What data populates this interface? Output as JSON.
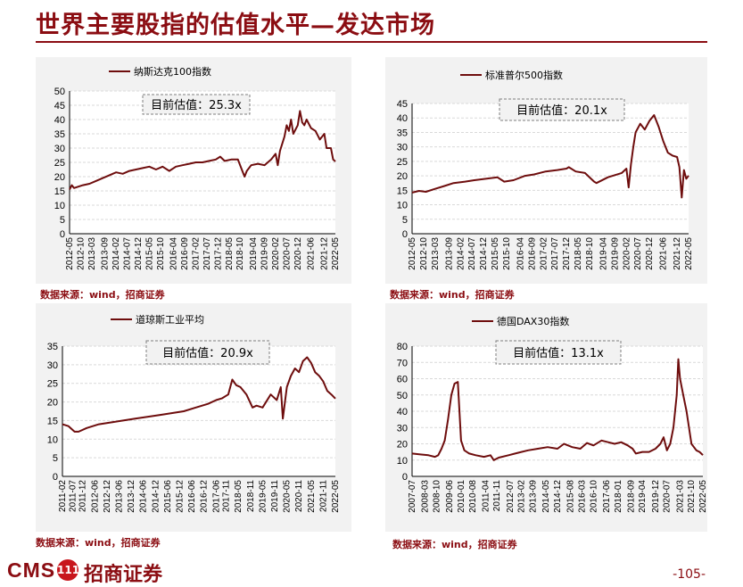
{
  "page": {
    "title": "世界主要股指的估值水平—发达市场",
    "page_number": "-105-",
    "logo": {
      "cms": "CMS",
      "badge": "111",
      "name": "招商证券"
    },
    "brand_color": "#8b0d12",
    "line_color": "#6e0d0d"
  },
  "chart_data": [
    {
      "type": "line",
      "legend": "纳斯达克100指数",
      "annotation": "目前估值：25.3x",
      "source": "数据来源：wind，招商证券",
      "ylim": [
        0,
        50
      ],
      "yticks": [
        0,
        5,
        10,
        15,
        20,
        25,
        30,
        35,
        40,
        45,
        50
      ],
      "xlim": [
        "2012-05",
        "2022-05"
      ],
      "xticks": [
        "2012-05",
        "2012-10",
        "2013-03",
        "2013-09",
        "2014-02",
        "2014-07",
        "2014-12",
        "2015-05",
        "2015-10",
        "2016-04",
        "2016-09",
        "2017-02",
        "2017-07",
        "2017-12",
        "2018-05",
        "2018-10",
        "2019-04",
        "2019-09",
        "2020-02",
        "2020-07",
        "2020-12",
        "2021-06",
        "2021-12",
        "2022-05"
      ],
      "series": [
        {
          "x": [
            "2012-05",
            "2012-06",
            "2012-07",
            "2012-09",
            "2012-11",
            "2013-02",
            "2013-05",
            "2013-08",
            "2013-11",
            "2014-02",
            "2014-05",
            "2014-08",
            "2014-11",
            "2015-02",
            "2015-05",
            "2015-08",
            "2015-11",
            "2016-02",
            "2016-05",
            "2016-08",
            "2016-11",
            "2017-02",
            "2017-05",
            "2017-08",
            "2017-11",
            "2018-01",
            "2018-03",
            "2018-06",
            "2018-09",
            "2018-11",
            "2018-12",
            "2019-01",
            "2019-03",
            "2019-06",
            "2019-09",
            "2019-12",
            "2020-02",
            "2020-03",
            "2020-04",
            "2020-06",
            "2020-07",
            "2020-08",
            "2020-09",
            "2020-10",
            "2020-12",
            "2021-01",
            "2021-02",
            "2021-03",
            "2021-04",
            "2021-06",
            "2021-08",
            "2021-10",
            "2021-12",
            "2022-01",
            "2022-03",
            "2022-04",
            "2022-05"
          ],
          "values": [
            15.5,
            17,
            16,
            16.5,
            17,
            17.5,
            18.5,
            19.5,
            20.5,
            21.5,
            21,
            22,
            22.5,
            23,
            23.5,
            22.5,
            23.5,
            22,
            23.5,
            24,
            24.5,
            25,
            25,
            25.5,
            26,
            27,
            25.5,
            26,
            26,
            22,
            20,
            22,
            24,
            24.5,
            24,
            26,
            28,
            24,
            29,
            34,
            38,
            36,
            40,
            35,
            38,
            43,
            39,
            38,
            40,
            37,
            36,
            33,
            35,
            30,
            30,
            26,
            25.3
          ]
        }
      ]
    },
    {
      "type": "line",
      "legend": "标准普尔500指数",
      "annotation": "目前估值：20.1x",
      "source": "数据来源：wind，招商证券",
      "ylim": [
        0,
        45
      ],
      "yticks": [
        0,
        5,
        10,
        15,
        20,
        25,
        30,
        35,
        40,
        45
      ],
      "xlim": [
        "2012-05",
        "2022-05"
      ],
      "xticks": [
        "2012-05",
        "2012-10",
        "2013-03",
        "2013-09",
        "2014-02",
        "2014-07",
        "2014-12",
        "2015-05",
        "2015-10",
        "2016-04",
        "2016-09",
        "2017-02",
        "2017-07",
        "2017-12",
        "2018-05",
        "2018-10",
        "2019-04",
        "2019-09",
        "2020-02",
        "2020-07",
        "2020-12",
        "2021-06",
        "2021-12",
        "2022-05"
      ],
      "series": [
        {
          "x": [
            "2012-05",
            "2012-08",
            "2012-11",
            "2013-03",
            "2013-07",
            "2013-11",
            "2014-04",
            "2014-08",
            "2015-01",
            "2015-06",
            "2015-09",
            "2016-01",
            "2016-06",
            "2016-10",
            "2017-03",
            "2017-08",
            "2017-12",
            "2018-01",
            "2018-04",
            "2018-08",
            "2018-12",
            "2019-01",
            "2019-06",
            "2019-12",
            "2020-02",
            "2020-03",
            "2020-04",
            "2020-05",
            "2020-06",
            "2020-08",
            "2020-10",
            "2020-12",
            "2021-02",
            "2021-04",
            "2021-06",
            "2021-08",
            "2021-10",
            "2021-12",
            "2022-01",
            "2022-02",
            "2022-03",
            "2022-04",
            "2022-05"
          ],
          "values": [
            14.2,
            14.8,
            14.5,
            15.5,
            16.5,
            17.5,
            18,
            18.5,
            19,
            19.5,
            18,
            18.5,
            20,
            20.5,
            21.5,
            22,
            22.5,
            23,
            21.5,
            21,
            18,
            17.5,
            19.5,
            21,
            22.5,
            16,
            24,
            30,
            35,
            38,
            36,
            39,
            41,
            37,
            32,
            28,
            27,
            26.5,
            23,
            12.5,
            22,
            19,
            20.1
          ]
        }
      ]
    },
    {
      "type": "line",
      "legend": "道琼斯工业平均",
      "annotation": "目前估值：20.9x",
      "source": "数据来源：wind，招商证券",
      "ylim": [
        0,
        35
      ],
      "yticks": [
        0,
        5,
        10,
        15,
        20,
        25,
        30,
        35
      ],
      "xlim": [
        "2011-02",
        "2022-05"
      ],
      "xticks": [
        "2011-02",
        "2011-07",
        "2011-12",
        "2012-06",
        "2012-12",
        "2013-06",
        "2013-12",
        "2014-06",
        "2014-12",
        "2015-06",
        "2015-12",
        "2016-06",
        "2016-12",
        "2017-06",
        "2017-11",
        "2018-05",
        "2018-11",
        "2019-05",
        "2019-11",
        "2020-05",
        "2020-11",
        "2021-05",
        "2021-11",
        "2022-05"
      ],
      "series": [
        {
          "x": [
            "2011-02",
            "2011-05",
            "2011-08",
            "2011-10",
            "2012-02",
            "2012-08",
            "2013-02",
            "2013-08",
            "2014-02",
            "2014-08",
            "2015-02",
            "2015-08",
            "2016-02",
            "2016-08",
            "2017-02",
            "2017-06",
            "2017-09",
            "2017-12",
            "2018-02",
            "2018-04",
            "2018-06",
            "2018-09",
            "2018-12",
            "2019-02",
            "2019-05",
            "2019-09",
            "2019-12",
            "2020-02",
            "2020-03",
            "2020-05",
            "2020-07",
            "2020-09",
            "2020-11",
            "2021-01",
            "2021-03",
            "2021-05",
            "2021-07",
            "2021-09",
            "2021-11",
            "2022-01",
            "2022-03",
            "2022-05"
          ],
          "values": [
            14,
            13.5,
            12,
            12,
            13,
            14,
            14.5,
            15,
            15.5,
            16,
            16.5,
            17,
            17.5,
            18.5,
            19.5,
            20.5,
            21,
            22,
            26,
            24.5,
            24,
            22,
            18.5,
            19,
            18.5,
            22,
            20.5,
            24,
            15.5,
            24,
            27,
            29,
            28,
            31,
            32,
            30.5,
            28,
            27,
            25.5,
            23,
            22,
            20.9
          ]
        }
      ]
    },
    {
      "type": "line",
      "legend": "德国DAX30指数",
      "annotation": "目前估值：13.1x",
      "source": "数据来源：wind，招商证券",
      "ylim": [
        0,
        80
      ],
      "yticks": [
        0,
        10,
        20,
        30,
        40,
        50,
        60,
        70,
        80
      ],
      "xlim": [
        "2007-07",
        "2022-05"
      ],
      "xticks": [
        "2007-07",
        "2008-03",
        "2008-10",
        "2009-06",
        "2010-01",
        "2010-08",
        "2011-04",
        "2011-11",
        "2012-07",
        "2013-02",
        "2013-09",
        "2014-05",
        "2014-12",
        "2015-08",
        "2016-03",
        "2016-10",
        "2017-06",
        "2018-01",
        "2018-09",
        "2019-04",
        "2019-12",
        "2020-07",
        "2021-03",
        "2021-10",
        "2022-05"
      ],
      "series": [
        {
          "x": [
            "2007-07",
            "2007-12",
            "2008-05",
            "2008-09",
            "2008-11",
            "2009-01",
            "2009-03",
            "2009-05",
            "2009-07",
            "2009-09",
            "2009-11",
            "2010-01",
            "2010-03",
            "2010-06",
            "2010-10",
            "2011-03",
            "2011-07",
            "2011-09",
            "2011-12",
            "2012-06",
            "2012-12",
            "2013-06",
            "2013-12",
            "2014-06",
            "2014-12",
            "2015-04",
            "2015-09",
            "2016-02",
            "2016-06",
            "2016-10",
            "2017-03",
            "2017-07",
            "2017-11",
            "2018-03",
            "2018-07",
            "2018-10",
            "2018-12",
            "2019-04",
            "2019-08",
            "2019-12",
            "2020-03",
            "2020-05",
            "2020-07",
            "2020-09",
            "2020-11",
            "2021-01",
            "2021-02",
            "2021-03",
            "2021-05",
            "2021-07",
            "2021-10",
            "2022-01",
            "2022-03",
            "2022-05"
          ],
          "values": [
            14,
            13.5,
            13,
            12,
            13,
            17,
            22,
            35,
            50,
            57,
            58,
            22,
            16,
            14,
            13,
            12,
            13,
            10,
            11.5,
            13,
            14.5,
            16,
            17,
            18,
            17,
            20,
            18,
            17,
            20.5,
            19,
            22,
            21,
            20,
            21,
            19,
            17,
            14,
            15,
            15,
            17,
            20,
            24,
            16,
            20,
            30,
            50,
            72,
            60,
            50,
            40,
            20,
            16,
            15,
            13.1
          ]
        }
      ]
    }
  ]
}
